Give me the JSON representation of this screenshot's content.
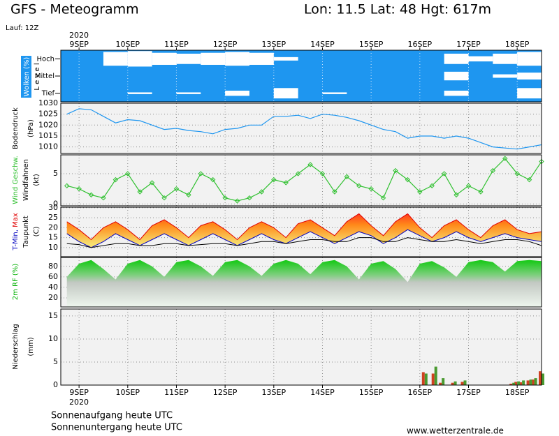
{
  "header": {
    "title": "GFS - Meteogramm",
    "location": "Lon: 11.5  Lat: 48  Hgt: 617m",
    "run": "Lauf: 12Z",
    "year": "2020"
  },
  "footer": {
    "sunrise": "Sonnenaufgang heute  UTC",
    "sunset": "Sonnenuntergang heute  UTC",
    "site": "www.wetterzentrale.de"
  },
  "chart_data": [
    {
      "type": "heatmap",
      "title": "Wolken (%)",
      "ylabel": "L e v e l",
      "color": "#ffffff",
      "background": "#1e96f0",
      "xlim": [
        -0.375,
        9.5
      ],
      "xticks": [
        {
          "value": 0,
          "label": "9SEP"
        },
        {
          "value": 1,
          "label": "10SEP"
        },
        {
          "value": 2,
          "label": "11SEP"
        },
        {
          "value": 3,
          "label": "12SEP"
        },
        {
          "value": 4,
          "label": "13SEP"
        },
        {
          "value": 5,
          "label": "14SEP"
        },
        {
          "value": 6,
          "label": "15SEP"
        },
        {
          "value": 7,
          "label": "16SEP"
        },
        {
          "value": 8,
          "label": "17SEP"
        },
        {
          "value": 9,
          "label": "18SEP"
        }
      ],
      "x": [
        -0.25,
        0.25,
        0.75,
        1.25,
        1.75,
        2.25,
        2.75,
        3.25,
        3.75,
        4.25,
        4.75,
        5.25,
        5.75,
        6.25,
        6.75,
        7.25,
        7.75,
        8.25,
        8.75,
        9.25
      ],
      "series": [
        {
          "name": "Hoch",
          "values": [
            0,
            0,
            80,
            90,
            70,
            60,
            70,
            80,
            70,
            20,
            0,
            0,
            0,
            0,
            0,
            0,
            60,
            30,
            60,
            80
          ]
        },
        {
          "name": "Mittel",
          "values": [
            0,
            0,
            0,
            0,
            0,
            0,
            0,
            0,
            0,
            0,
            0,
            0,
            0,
            0,
            0,
            0,
            50,
            0,
            20,
            40
          ]
        },
        {
          "name": "Tief",
          "values": [
            0,
            0,
            0,
            10,
            0,
            10,
            0,
            30,
            0,
            60,
            0,
            10,
            0,
            0,
            0,
            0,
            30,
            0,
            0,
            60
          ]
        }
      ]
    },
    {
      "type": "line",
      "ylabel": "Bodendruck",
      "yunit": "(hPa)",
      "xlim": [
        -0.375,
        9.5
      ],
      "xticks": [
        0,
        1,
        2,
        3,
        4,
        5,
        6,
        7,
        8,
        9
      ],
      "ylim": [
        1007,
        1030
      ],
      "yticks": [
        1010,
        1015,
        1020,
        1025,
        1030
      ],
      "x": [
        -0.25,
        0,
        0.25,
        0.5,
        0.75,
        1,
        1.25,
        1.5,
        1.75,
        2,
        2.25,
        2.5,
        2.75,
        3,
        3.25,
        3.5,
        3.75,
        4,
        4.25,
        4.5,
        4.75,
        5,
        5.25,
        5.5,
        5.75,
        6,
        6.25,
        6.5,
        6.75,
        7,
        7.25,
        7.5,
        7.75,
        8,
        8.25,
        8.5,
        8.75,
        9,
        9.25,
        9.5
      ],
      "series": [
        {
          "color": "#1e96f0",
          "values": [
            1025,
            1027.5,
            1027,
            1024,
            1021,
            1022.5,
            1022,
            1020,
            1018,
            1018.5,
            1017.5,
            1017,
            1016,
            1018,
            1018.5,
            1020,
            1020,
            1024,
            1024,
            1024.5,
            1023,
            1025,
            1024.5,
            1023.5,
            1022,
            1020,
            1018,
            1017,
            1014,
            1015,
            1015,
            1014,
            1015,
            1014,
            1012,
            1010,
            1009.5,
            1009,
            1010,
            1011
          ]
        }
      ]
    },
    {
      "type": "line",
      "ylabel": "Windfahnen",
      "yunit": "(kt)",
      "markers": true,
      "xlim": [
        -0.375,
        9.5
      ],
      "xticks": [
        0,
        1,
        2,
        3,
        4,
        5,
        6,
        7,
        8,
        9
      ],
      "ylim": [
        -0.3,
        8.1
      ],
      "yticks": [
        0,
        5
      ],
      "x": [
        -0.25,
        0,
        0.25,
        0.5,
        0.75,
        1,
        1.25,
        1.5,
        1.75,
        2,
        2.25,
        2.5,
        2.75,
        3,
        3.25,
        3.5,
        3.75,
        4,
        4.25,
        4.5,
        4.75,
        5,
        5.25,
        5.5,
        5.75,
        6,
        6.25,
        6.5,
        6.75,
        7,
        7.25,
        7.5,
        7.75,
        8,
        8.25,
        8.5,
        8.75,
        9,
        9.25,
        9.5
      ],
      "series": [
        {
          "name": "Wind Geschw.",
          "color": "#30c030",
          "values": [
            3,
            2.5,
            1.5,
            1,
            4,
            5,
            2,
            3.5,
            1,
            2.5,
            1.5,
            5,
            4,
            1,
            0.5,
            1,
            2,
            4,
            3.5,
            5,
            6.5,
            5,
            2,
            4.5,
            3,
            2.5,
            1,
            5.5,
            4,
            2,
            3,
            5,
            1.5,
            3,
            2,
            5.5,
            7.5,
            5,
            4,
            7
          ]
        }
      ]
    },
    {
      "type": "range",
      "xlim": [
        -0.375,
        9.5
      ],
      "xticks": [
        0,
        1,
        2,
        3,
        4,
        5,
        6,
        7,
        8,
        9
      ],
      "ylim": [
        5.4,
        30.3
      ],
      "yticks": [
        10,
        15,
        20,
        25,
        30
      ],
      "yunit": "(C)",
      "x": [
        -0.25,
        0,
        0.25,
        0.5,
        0.75,
        1,
        1.25,
        1.5,
        1.75,
        2,
        2.25,
        2.5,
        2.75,
        3,
        3.25,
        3.5,
        3.75,
        4,
        4.25,
        4.5,
        4.75,
        5,
        5.25,
        5.5,
        5.75,
        6,
        6.25,
        6.5,
        6.75,
        7,
        7.25,
        7.5,
        7.75,
        8,
        8.25,
        8.5,
        8.75,
        9,
        9.25,
        9.5
      ],
      "series": [
        {
          "name": "Max",
          "color": "#e00000",
          "values": [
            23,
            19,
            14,
            20,
            23,
            19,
            14,
            21,
            24,
            20,
            15,
            21,
            23,
            19,
            14,
            20,
            23,
            20,
            15,
            22,
            24,
            20,
            16,
            23,
            27,
            21,
            16,
            23,
            27,
            20,
            15,
            21,
            24,
            19,
            15,
            21,
            24,
            19,
            17,
            18
          ]
        },
        {
          "name": "T-Min,",
          "color": "#0000c0",
          "values": [
            17,
            13,
            10,
            13,
            17,
            14,
            11,
            14,
            17,
            14,
            11,
            14,
            17,
            14,
            11,
            14,
            17,
            14,
            12,
            15,
            18,
            15,
            12,
            15,
            18,
            16,
            12,
            15,
            19,
            16,
            13,
            15,
            18,
            15,
            13,
            15,
            17,
            15,
            14,
            13
          ]
        },
        {
          "name": "Taupunkt",
          "color": "#000000",
          "values": [
            12,
            11.5,
            10,
            11,
            12,
            12,
            11,
            11,
            12,
            12,
            11,
            11.5,
            12,
            12,
            11,
            12,
            13,
            13,
            12,
            13,
            14,
            14,
            13,
            13,
            15,
            15,
            13,
            13,
            15,
            14,
            13,
            13,
            14,
            13,
            12,
            13,
            14,
            14,
            13,
            11
          ]
        }
      ]
    },
    {
      "type": "area",
      "xlim": [
        -0.375,
        9.5
      ],
      "xticks": [
        0,
        1,
        2,
        3,
        4,
        5,
        6,
        7,
        8,
        9
      ],
      "ylim": [
        2.7,
        97
      ],
      "yticks": [
        20,
        40,
        60,
        80
      ],
      "x": [
        -0.25,
        0,
        0.25,
        0.5,
        0.75,
        1,
        1.25,
        1.5,
        1.75,
        2,
        2.25,
        2.5,
        2.75,
        3,
        3.25,
        3.5,
        3.75,
        4,
        4.25,
        4.5,
        4.75,
        5,
        5.25,
        5.5,
        5.75,
        6,
        6.25,
        6.5,
        6.75,
        7,
        7.25,
        7.5,
        7.75,
        8,
        8.25,
        8.5,
        8.75,
        9,
        9.25,
        9.5
      ],
      "series": [
        {
          "name": "2m RF (%)",
          "color": "#00b000",
          "values": [
            60,
            85,
            92,
            75,
            55,
            85,
            92,
            80,
            60,
            88,
            92,
            80,
            62,
            88,
            92,
            80,
            62,
            85,
            92,
            85,
            65,
            88,
            92,
            80,
            55,
            85,
            90,
            75,
            50,
            85,
            90,
            78,
            60,
            88,
            92,
            88,
            70,
            90,
            92,
            90
          ]
        }
      ]
    },
    {
      "type": "bar",
      "ylabel": "Niederschlag",
      "yunit": "(mm)",
      "xlim": [
        -0.375,
        9.5
      ],
      "xticks": [
        {
          "value": 0,
          "label": "9SEP"
        },
        {
          "value": 1,
          "label": "10SEP"
        },
        {
          "value": 2,
          "label": "11SEP"
        },
        {
          "value": 3,
          "label": "12SEP"
        },
        {
          "value": 4,
          "label": "13SEP"
        },
        {
          "value": 5,
          "label": "14SEP"
        },
        {
          "value": 6,
          "label": "15SEP"
        },
        {
          "value": 7,
          "label": "16SEP"
        },
        {
          "value": 8,
          "label": "17SEP"
        },
        {
          "value": 9,
          "label": "18SEP"
        }
      ],
      "ylim": [
        0,
        16.5
      ],
      "yticks": [
        0,
        5,
        10,
        15
      ],
      "x": [
        7.1,
        7.3,
        7.45,
        7.7,
        7.9,
        8.9,
        9.0,
        9.1,
        9.25,
        9.35,
        9.5
      ],
      "series": [
        {
          "color": "#d04020",
          "values": [
            2.8,
            2.5,
            0.5,
            0.5,
            0.7,
            0.3,
            0.7,
            0.6,
            1,
            1.2,
            3
          ]
        },
        {
          "color": "#4a9a30",
          "values": [
            2.5,
            4,
            1.5,
            0.8,
            1,
            0.5,
            0.8,
            1,
            1.2,
            1.5,
            2.5
          ]
        }
      ]
    }
  ]
}
